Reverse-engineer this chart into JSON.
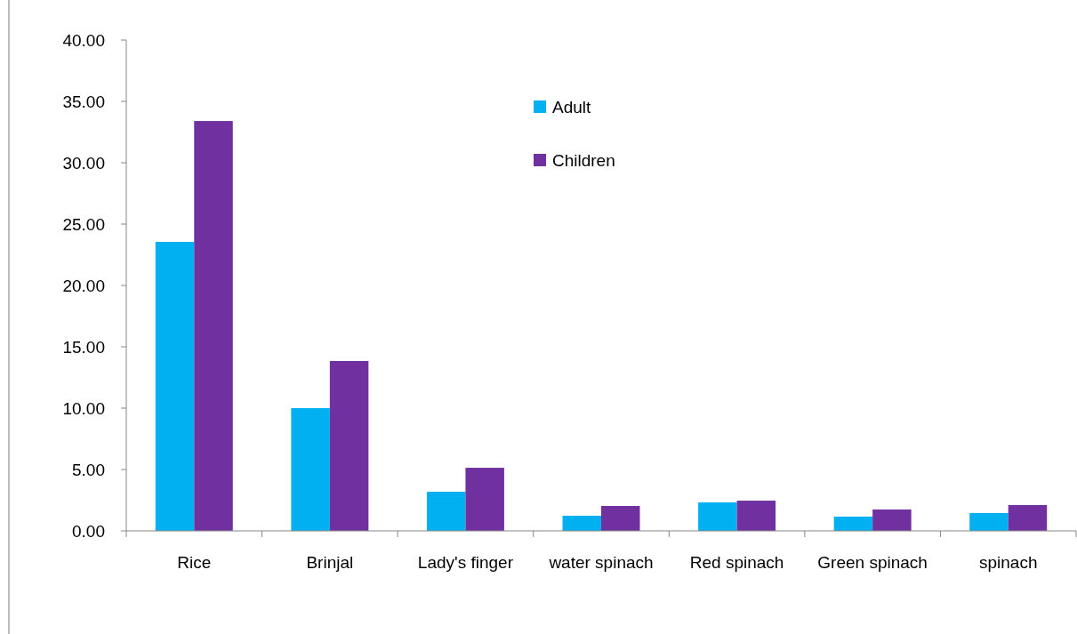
{
  "chart_data": {
    "type": "bar",
    "categories": [
      "Rice",
      "Brinjal",
      "Lady's finger",
      "water spinach",
      "Red spinach",
      "Green spinach",
      "spinach"
    ],
    "series": [
      {
        "name": "Adult",
        "color": "#00b0f0",
        "values": [
          23.55,
          10.0,
          3.19,
          1.23,
          2.32,
          1.16,
          1.45
        ]
      },
      {
        "name": "Children",
        "color": "#7030a0",
        "values": [
          33.4,
          13.84,
          5.14,
          2.03,
          2.46,
          1.74,
          2.1
        ]
      }
    ],
    "ylim": [
      0,
      40
    ],
    "yticks": [
      {
        "value": 0,
        "label": "0.00"
      },
      {
        "value": 5,
        "label": "5.00"
      },
      {
        "value": 10,
        "label": "10.00"
      },
      {
        "value": 15,
        "label": "15.00"
      },
      {
        "value": 20,
        "label": "20.00"
      },
      {
        "value": 25,
        "label": "25.00"
      },
      {
        "value": 30,
        "label": "30.00"
      },
      {
        "value": 35,
        "label": "35.00"
      },
      {
        "value": 40,
        "label": "40.00"
      }
    ],
    "grid": false,
    "legend": "top"
  }
}
